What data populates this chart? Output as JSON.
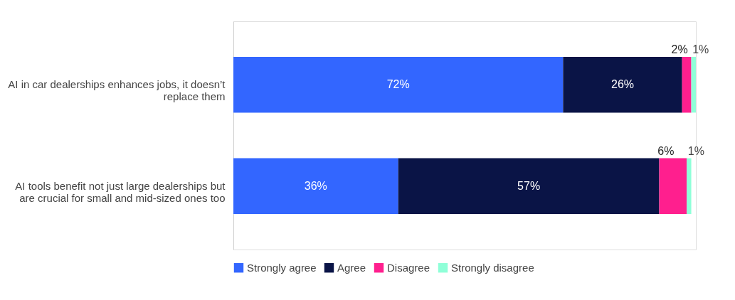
{
  "chart_data": {
    "type": "bar",
    "orientation": "horizontal",
    "stacked": true,
    "legend": "bottom",
    "grid": false,
    "data_labels": true,
    "categories": [
      "AI in car dealerships enhances jobs, it doesn’t replace them",
      "AI tools benefit not just large dealerships but are crucial for small and mid-sized ones too"
    ],
    "series": [
      {
        "name": "Strongly agree",
        "color": "#3366ff",
        "values": [
          72,
          36
        ],
        "value_labels": [
          "72%",
          "36%"
        ]
      },
      {
        "name": "Agree",
        "color": "#0a1446",
        "values": [
          26,
          57
        ],
        "value_labels": [
          "26%",
          "57%"
        ]
      },
      {
        "name": "Disagree",
        "color": "#ff1f8e",
        "values": [
          2,
          6
        ],
        "value_labels": [
          "2%",
          "6%"
        ]
      },
      {
        "name": "Strongly disagree",
        "color": "#8fffd8",
        "values": [
          1,
          1
        ],
        "value_labels": [
          "1%",
          "1%"
        ]
      }
    ]
  }
}
